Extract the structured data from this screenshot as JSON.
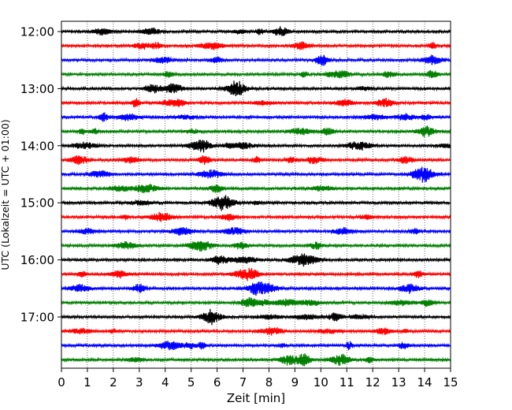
{
  "chart_data": {
    "type": "line",
    "title": "",
    "xlabel": "Zeit  [min]",
    "ylabel": "UTC (Lokalzeit = UTC + 01:00)",
    "xlim": [
      0,
      15
    ],
    "x_ticks": [
      "0",
      "1",
      "2",
      "3",
      "4",
      "5",
      "6",
      "7",
      "8",
      "9",
      "10",
      "11",
      "12",
      "13",
      "14",
      "15"
    ],
    "y_ticks": [
      "12:00",
      "13:00",
      "14:00",
      "15:00",
      "16:00",
      "17:00"
    ],
    "grid": "vertical-dotted",
    "legend": "none",
    "trace_colors": [
      "#000000",
      "#ff0000",
      "#0000ff",
      "#008000"
    ],
    "traces": [
      {
        "start": "12:00"
      },
      {
        "start": "12:15"
      },
      {
        "start": "12:30"
      },
      {
        "start": "12:45"
      },
      {
        "start": "13:00"
      },
      {
        "start": "13:15"
      },
      {
        "start": "13:30"
      },
      {
        "start": "13:45"
      },
      {
        "start": "14:00"
      },
      {
        "start": "14:15"
      },
      {
        "start": "14:30"
      },
      {
        "start": "14:45"
      },
      {
        "start": "15:00"
      },
      {
        "start": "15:15"
      },
      {
        "start": "15:30"
      },
      {
        "start": "15:45"
      },
      {
        "start": "16:00"
      },
      {
        "start": "16:15"
      },
      {
        "start": "16:30"
      },
      {
        "start": "16:45"
      },
      {
        "start": "17:00"
      },
      {
        "start": "17:15"
      },
      {
        "start": "17:30"
      },
      {
        "start": "17:45"
      }
    ]
  }
}
